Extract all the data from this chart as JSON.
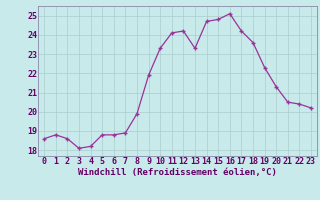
{
  "x": [
    0,
    1,
    2,
    3,
    4,
    5,
    6,
    7,
    8,
    9,
    10,
    11,
    12,
    13,
    14,
    15,
    16,
    17,
    18,
    19,
    20,
    21,
    22,
    23
  ],
  "y": [
    18.6,
    18.8,
    18.6,
    18.1,
    18.2,
    18.8,
    18.8,
    18.9,
    19.9,
    21.9,
    23.3,
    24.1,
    24.2,
    23.3,
    24.7,
    24.8,
    25.1,
    24.2,
    23.6,
    22.3,
    21.3,
    20.5,
    20.4,
    20.2
  ],
  "xlabel": "Windchill (Refroidissement éolien,°C)",
  "line_color": "#993399",
  "marker": "+",
  "background_color": "#c8eaea",
  "grid_color": "#aacccc",
  "ylim": [
    17.7,
    25.5
  ],
  "xlim": [
    -0.5,
    23.5
  ],
  "yticks": [
    18,
    19,
    20,
    21,
    22,
    23,
    24,
    25
  ],
  "xticks": [
    0,
    1,
    2,
    3,
    4,
    5,
    6,
    7,
    8,
    9,
    10,
    11,
    12,
    13,
    14,
    15,
    16,
    17,
    18,
    19,
    20,
    21,
    22,
    23
  ],
  "tick_color": "#660066",
  "label_color": "#660066",
  "label_fontsize": 6.5,
  "tick_fontsize": 6.0,
  "spine_color": "#8888aa"
}
